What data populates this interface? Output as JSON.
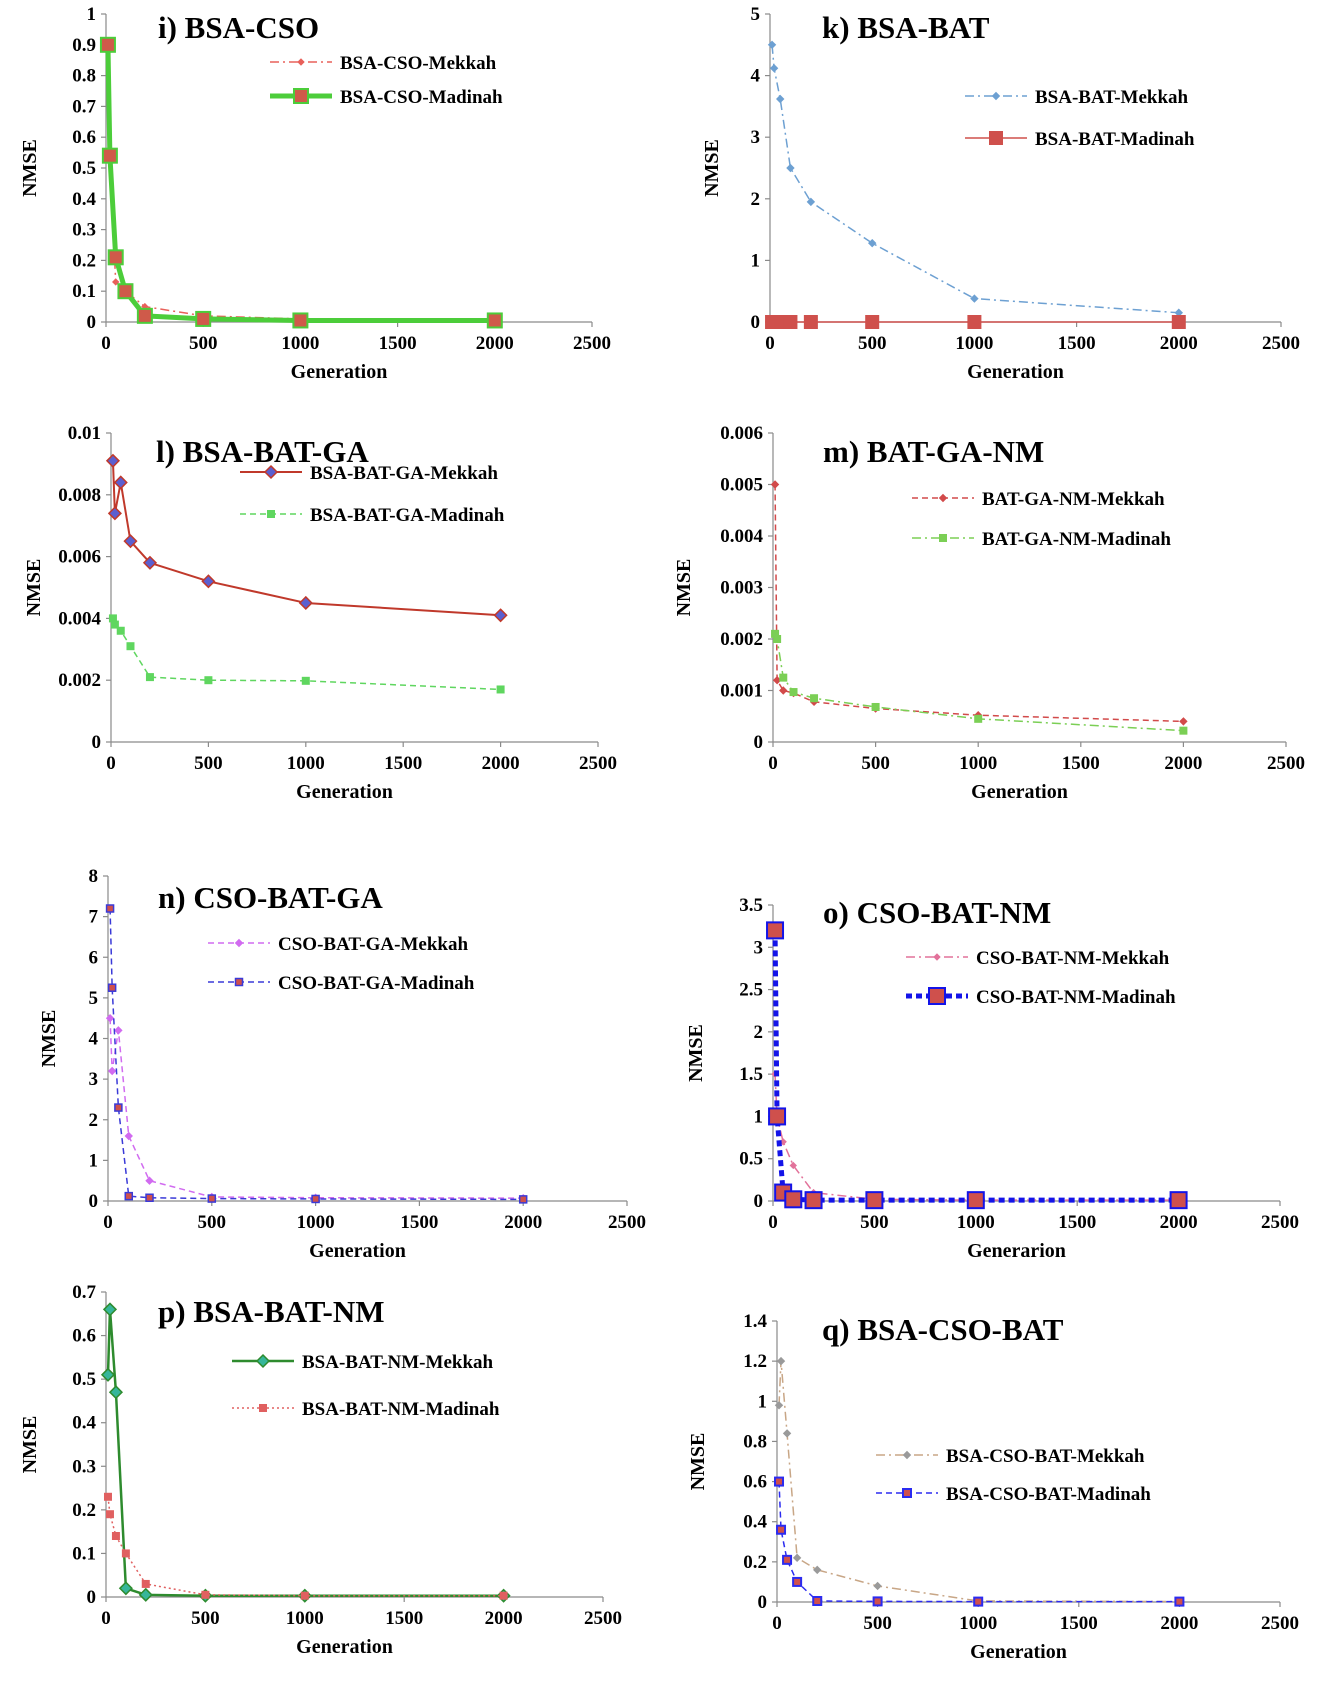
{
  "chart_data": [
    {
      "id": "i",
      "type": "line",
      "title": "i) BSA-CSO",
      "xlabel": "Generation",
      "ylabel": "NMSE",
      "xlim": [
        0,
        2500
      ],
      "ylim": [
        0,
        1
      ],
      "xticks": [
        0,
        500,
        1000,
        1500,
        2000,
        2500
      ],
      "yticks": [
        0,
        0.1,
        0.2,
        0.3,
        0.4,
        0.5,
        0.6,
        0.7,
        0.8,
        0.9,
        1
      ],
      "ytick_labels": [
        "0",
        "0.1",
        "0.2",
        "0.3",
        "0.4",
        "0.5",
        "0.6",
        "0.7",
        "0.8",
        "0.9",
        "1"
      ],
      "legend": "top-right",
      "series": [
        {
          "name": "BSA-CSO-Mekkah",
          "x": [
            10,
            20,
            50,
            100,
            200,
            500,
            1000,
            2000
          ],
          "y": [
            0.88,
            0.52,
            0.13,
            0.1,
            0.05,
            0.02,
            0.01,
            0.005
          ],
          "color": "#e8605a",
          "style": "dash-dot",
          "width": 1.5,
          "marker": "diamond",
          "msize": 3
        },
        {
          "name": "BSA-CSO-Madinah",
          "x": [
            10,
            20,
            50,
            100,
            200,
            500,
            1000,
            2000
          ],
          "y": [
            0.9,
            0.54,
            0.21,
            0.1,
            0.02,
            0.01,
            0.005,
            0.005
          ],
          "color": "#4ccd3a",
          "style": "solid",
          "width": 5,
          "marker": "square",
          "msize": 7
        }
      ]
    },
    {
      "id": "k",
      "type": "line",
      "title": "k) BSA-BAT",
      "xlabel": "Generation",
      "ylabel": "NMSE",
      "xlim": [
        0,
        2500
      ],
      "ylim": [
        0,
        5
      ],
      "xticks": [
        0,
        500,
        1000,
        1500,
        2000,
        2500
      ],
      "yticks": [
        0,
        1,
        2,
        3,
        4,
        5
      ],
      "ytick_labels": [
        "0",
        "1",
        "2",
        "3",
        "4",
        "5"
      ],
      "legend": "top-right",
      "series": [
        {
          "name": "BSA-BAT-Mekkah",
          "x": [
            10,
            20,
            50,
            100,
            200,
            500,
            1000,
            2000
          ],
          "y": [
            4.5,
            4.12,
            3.62,
            2.5,
            1.95,
            1.28,
            0.38,
            0.15
          ],
          "color": "#6da0d2",
          "style": "dash-dot",
          "width": 1.5,
          "marker": "diamond",
          "msize": 3.5
        },
        {
          "name": "BSA-BAT-Madinah",
          "x": [
            10,
            20,
            50,
            100,
            200,
            500,
            1000,
            2000
          ],
          "y": [
            0,
            0,
            0,
            0,
            0,
            0,
            0,
            0
          ],
          "color": "#cf504c",
          "style": "solid",
          "width": 1.5,
          "marker": "square",
          "msize": 6
        }
      ]
    },
    {
      "id": "l",
      "type": "line",
      "title": "l) BSA-BAT-GA",
      "xlabel": "Generation",
      "ylabel": "NMSE",
      "xlim": [
        0,
        2500
      ],
      "ylim": [
        0,
        0.01
      ],
      "xticks": [
        0,
        500,
        1000,
        1500,
        2000,
        2500
      ],
      "yticks": [
        0,
        0.002,
        0.004,
        0.006,
        0.008,
        0.01
      ],
      "ytick_labels": [
        "0",
        "0.002",
        "0.004",
        "0.006",
        "0.008",
        "0.01"
      ],
      "legend": "top-right",
      "series": [
        {
          "name": "BSA-BAT-GA-Mekkah",
          "x": [
            10,
            20,
            50,
            100,
            200,
            500,
            1000,
            2000
          ],
          "y": [
            0.0091,
            0.0074,
            0.0084,
            0.0065,
            0.0058,
            0.0052,
            0.0045,
            0.0041
          ],
          "color": "#c0392b",
          "style": "solid",
          "width": 2,
          "marker": "diamond-blue",
          "msize": 6
        },
        {
          "name": "BSA-BAT-GA-Madinah",
          "x": [
            10,
            20,
            50,
            100,
            200,
            500,
            1000,
            2000
          ],
          "y": [
            0.004,
            0.0038,
            0.0036,
            0.0031,
            0.0021,
            0.002,
            0.00198,
            0.0017
          ],
          "color": "#5fd65f",
          "style": "dash",
          "width": 1.5,
          "marker": "square-small",
          "msize": 3.5
        }
      ]
    },
    {
      "id": "m",
      "type": "line",
      "title": "m) BAT-GA-NM",
      "xlabel": "Generation",
      "ylabel": "NMSE",
      "xlim": [
        0,
        2500
      ],
      "ylim": [
        0,
        0.006
      ],
      "xticks": [
        0,
        500,
        1000,
        1500,
        2000,
        2500
      ],
      "yticks": [
        0,
        0.001,
        0.002,
        0.003,
        0.004,
        0.005,
        0.006
      ],
      "ytick_labels": [
        "0",
        "0.001",
        "0.002",
        "0.003",
        "0.004",
        "0.005",
        "0.006"
      ],
      "legend": "top-right",
      "series": [
        {
          "name": "BAT-GA-NM-Mekkah",
          "x": [
            10,
            20,
            50,
            100,
            200,
            500,
            1000,
            2000
          ],
          "y": [
            0.005,
            0.0012,
            0.001,
            0.00095,
            0.00078,
            0.00065,
            0.00052,
            0.0004
          ],
          "color": "#d24a4a",
          "style": "dash",
          "width": 1.5,
          "marker": "diamond",
          "msize": 3.5
        },
        {
          "name": "BAT-GA-NM-Madinah",
          "x": [
            10,
            20,
            50,
            100,
            200,
            500,
            1000,
            2000
          ],
          "y": [
            0.0021,
            0.002,
            0.00125,
            0.00097,
            0.00085,
            0.00068,
            0.00045,
            0.00022
          ],
          "color": "#7bcf55",
          "style": "dash-dot",
          "width": 1.5,
          "marker": "square-small",
          "msize": 3.5
        }
      ]
    },
    {
      "id": "n",
      "type": "line",
      "title": "n) CSO-BAT-GA",
      "xlabel": "Generation",
      "ylabel": "NMSE",
      "xlim": [
        0,
        2500
      ],
      "ylim": [
        0,
        8
      ],
      "xticks": [
        0,
        500,
        1000,
        1500,
        2000,
        2500
      ],
      "yticks": [
        0,
        1,
        2,
        3,
        4,
        5,
        6,
        7,
        8
      ],
      "ytick_labels": [
        "0",
        "1",
        "2",
        "3",
        "4",
        "5",
        "6",
        "7",
        "8"
      ],
      "legend": "top-right",
      "series": [
        {
          "name": "CSO-BAT-GA-Mekkah",
          "x": [
            10,
            20,
            50,
            100,
            200,
            500,
            1000,
            2000
          ],
          "y": [
            4.5,
            3.2,
            4.2,
            1.6,
            0.5,
            0.1,
            0.08,
            0.07
          ],
          "color": "#d16bf0",
          "style": "dash",
          "width": 1.5,
          "marker": "diamond",
          "msize": 3.5
        },
        {
          "name": "CSO-BAT-GA-Madinah",
          "x": [
            10,
            20,
            50,
            100,
            200,
            500,
            1000,
            2000
          ],
          "y": [
            7.2,
            5.25,
            2.3,
            0.12,
            0.08,
            0.06,
            0.05,
            0.04
          ],
          "color": "#3a3ad8",
          "style": "dash",
          "width": 1.5,
          "marker": "square-red",
          "msize": 3.5
        }
      ]
    },
    {
      "id": "o",
      "type": "line",
      "title": "o) CSO-BAT-NM",
      "xlabel": "Generarion",
      "ylabel": "NMSE",
      "xlim": [
        0,
        2500
      ],
      "ylim": [
        0,
        3.5
      ],
      "xticks": [
        0,
        500,
        1000,
        1500,
        2000,
        2500
      ],
      "yticks": [
        0,
        0.5,
        1,
        1.5,
        2,
        2.5,
        3,
        3.5
      ],
      "ytick_labels": [
        "0",
        "0.5",
        "1",
        "1.5",
        "2",
        "2.5",
        "3",
        "3.5"
      ],
      "legend": "top-right",
      "series": [
        {
          "name": "CSO-BAT-NM-Mekkah",
          "x": [
            10,
            20,
            50,
            100,
            200,
            500,
            1000,
            2000
          ],
          "y": [
            1.5,
            1.0,
            0.7,
            0.42,
            0.1,
            0.02,
            0.01,
            0.01
          ],
          "color": "#e2729a",
          "style": "dash-dot",
          "width": 1.5,
          "marker": "diamond",
          "msize": 3
        },
        {
          "name": "CSO-BAT-NM-Madinah",
          "x": [
            10,
            20,
            50,
            100,
            200,
            500,
            1000,
            2000
          ],
          "y": [
            3.2,
            1.0,
            0.1,
            0.02,
            0.01,
            0.01,
            0.01,
            0.01
          ],
          "color": "#1414e8",
          "style": "dash",
          "width": 5,
          "marker": "square-red-big",
          "msize": 8
        }
      ]
    },
    {
      "id": "p",
      "type": "line",
      "title": "p) BSA-BAT-NM",
      "xlabel": "Generation",
      "ylabel": "NMSE",
      "xlim": [
        0,
        2500
      ],
      "ylim": [
        0,
        0.7
      ],
      "xticks": [
        0,
        500,
        1000,
        1500,
        2000,
        2500
      ],
      "yticks": [
        0,
        0.1,
        0.2,
        0.3,
        0.4,
        0.5,
        0.6,
        0.7
      ],
      "ytick_labels": [
        "0",
        "0.1",
        "0.2",
        "0.3",
        "0.4",
        "0.5",
        "0.6",
        "0.7"
      ],
      "legend": "top-right",
      "series": [
        {
          "name": "BSA-BAT-NM-Mekkah",
          "x": [
            10,
            20,
            50,
            100,
            200,
            500,
            1000,
            2000
          ],
          "y": [
            0.51,
            0.66,
            0.47,
            0.02,
            0.005,
            0.003,
            0.003,
            0.003
          ],
          "color": "#2e8b2e",
          "style": "solid",
          "width": 2.5,
          "marker": "diamond-green",
          "msize": 6
        },
        {
          "name": "BSA-BAT-NM-Madinah",
          "x": [
            10,
            20,
            50,
            100,
            200,
            500,
            1000,
            2000
          ],
          "y": [
            0.23,
            0.19,
            0.14,
            0.1,
            0.03,
            0.005,
            0.003,
            0.003
          ],
          "color": "#e06060",
          "style": "dot",
          "width": 1.5,
          "marker": "square-small",
          "msize": 3.5
        }
      ]
    },
    {
      "id": "q",
      "type": "line",
      "title": "q) BSA-CSO-BAT",
      "xlabel": "Generation",
      "ylabel": "NMSE",
      "xlim": [
        0,
        2500
      ],
      "ylim": [
        0,
        1.4
      ],
      "xticks": [
        0,
        500,
        1000,
        1500,
        2000,
        2500
      ],
      "yticks": [
        0,
        0.2,
        0.4,
        0.6,
        0.8,
        1,
        1.2,
        1.4
      ],
      "ytick_labels": [
        "0",
        "0.2",
        "0.4",
        "0.6",
        "0.8",
        "1",
        "1.2",
        "1.4"
      ],
      "legend": "right",
      "series": [
        {
          "name": "BSA-CSO-BAT-Mekkah",
          "x": [
            10,
            20,
            50,
            100,
            200,
            500,
            1000,
            2000
          ],
          "y": [
            0.98,
            1.2,
            0.84,
            0.22,
            0.16,
            0.08,
            0.005,
            0.002
          ],
          "color": "#c8a686",
          "style": "dash-dot",
          "width": 1.5,
          "marker": "diamond-grey",
          "msize": 3.5
        },
        {
          "name": "BSA-CSO-BAT-Madinah",
          "x": [
            10,
            20,
            50,
            100,
            200,
            500,
            1000,
            2000
          ],
          "y": [
            0.6,
            0.36,
            0.21,
            0.1,
            0.005,
            0.003,
            0.002,
            0.002
          ],
          "color": "#2b2bf0",
          "style": "dash",
          "width": 1.5,
          "marker": "square-blue-red",
          "msize": 4
        }
      ]
    }
  ]
}
